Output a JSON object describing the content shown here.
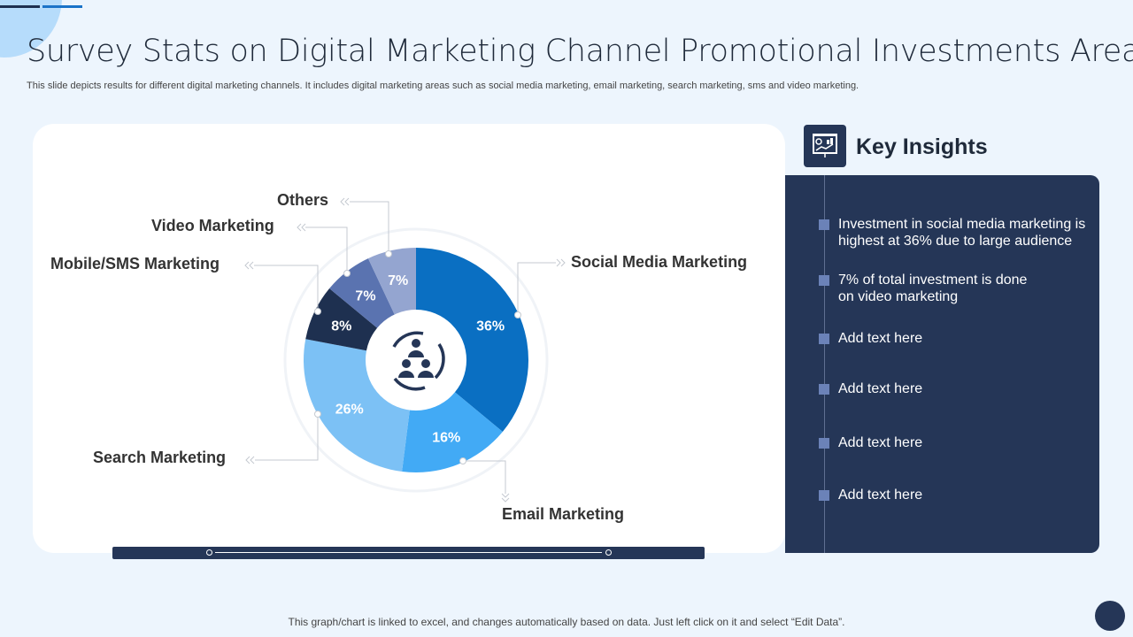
{
  "title": "Survey Stats on Digital Marketing Channel Promotional Investments  Areas",
  "subtitle": "This slide depicts results for different digital marketing channels. It includes digital marketing areas such as social media marketing, email marketing, search marketing, sms and video marketing.",
  "chart_data": {
    "type": "pie",
    "variant": "donut",
    "center_icon": "people-cycle-icon",
    "categories": [
      "Social Media Marketing",
      "Email Marketing",
      "Search Marketing",
      "Mobile/SMS Marketing",
      "Video Marketing",
      "Others"
    ],
    "values": [
      36,
      16,
      26,
      8,
      7,
      7
    ],
    "data_labels": [
      "36%",
      "16%",
      "26%",
      "8%",
      "7%",
      "7%"
    ],
    "colors": [
      "#0a6fc2",
      "#42aaf5",
      "#7cc1f5",
      "#1e3050",
      "#5a73b0",
      "#94a5d0"
    ]
  },
  "key_insights": {
    "title": "Key Insights",
    "icon": "presentation-chart-icon",
    "items": [
      {
        "text": "Investment  in social media marketing is highest at 36% due to large audience"
      },
      {
        "text": "7% of total investment  is done on video marketing"
      },
      {
        "text": "Add text here"
      },
      {
        "text": "Add text here"
      },
      {
        "text": "Add text here"
      },
      {
        "text": "Add text here"
      }
    ]
  },
  "footer": "This graph/chart is linked to excel, and changes automatically based on data. Just left click on it and select “Edit Data”."
}
